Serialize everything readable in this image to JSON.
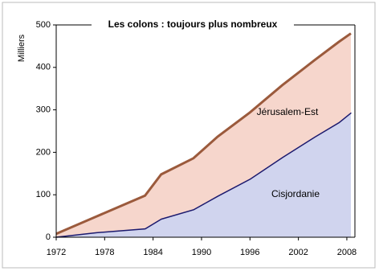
{
  "chart_data": {
    "type": "stacked-area",
    "title": "Les colons : toujours plus nombreux",
    "y_label": "Milliers",
    "x": [
      1972,
      1977,
      1983,
      1985,
      1989,
      1992,
      1996,
      2000,
      2004,
      2007,
      2008.5
    ],
    "series": [
      {
        "name": "Cisjordanie",
        "color": "#1c1a6e",
        "fill": "#d0d4ee",
        "values": [
          1.5,
          12,
          21,
          44,
          66,
          98,
          138,
          189,
          237,
          271,
          294
        ]
      },
      {
        "name": "Jérusalem-Est",
        "color": "#9b5a3c",
        "fill": "#f6d6cc",
        "values": [
          6.5,
          37,
          77,
          104,
          120,
          139,
          156,
          169,
          180,
          189,
          186
        ]
      }
    ],
    "xlim": [
      1972,
      2009
    ],
    "ylim": [
      0,
      500
    ],
    "xticks": [
      1972,
      1978,
      1984,
      1990,
      1996,
      2002,
      2008
    ],
    "yticks": [
      0,
      100,
      200,
      300,
      400,
      500
    ],
    "grid": false
  }
}
